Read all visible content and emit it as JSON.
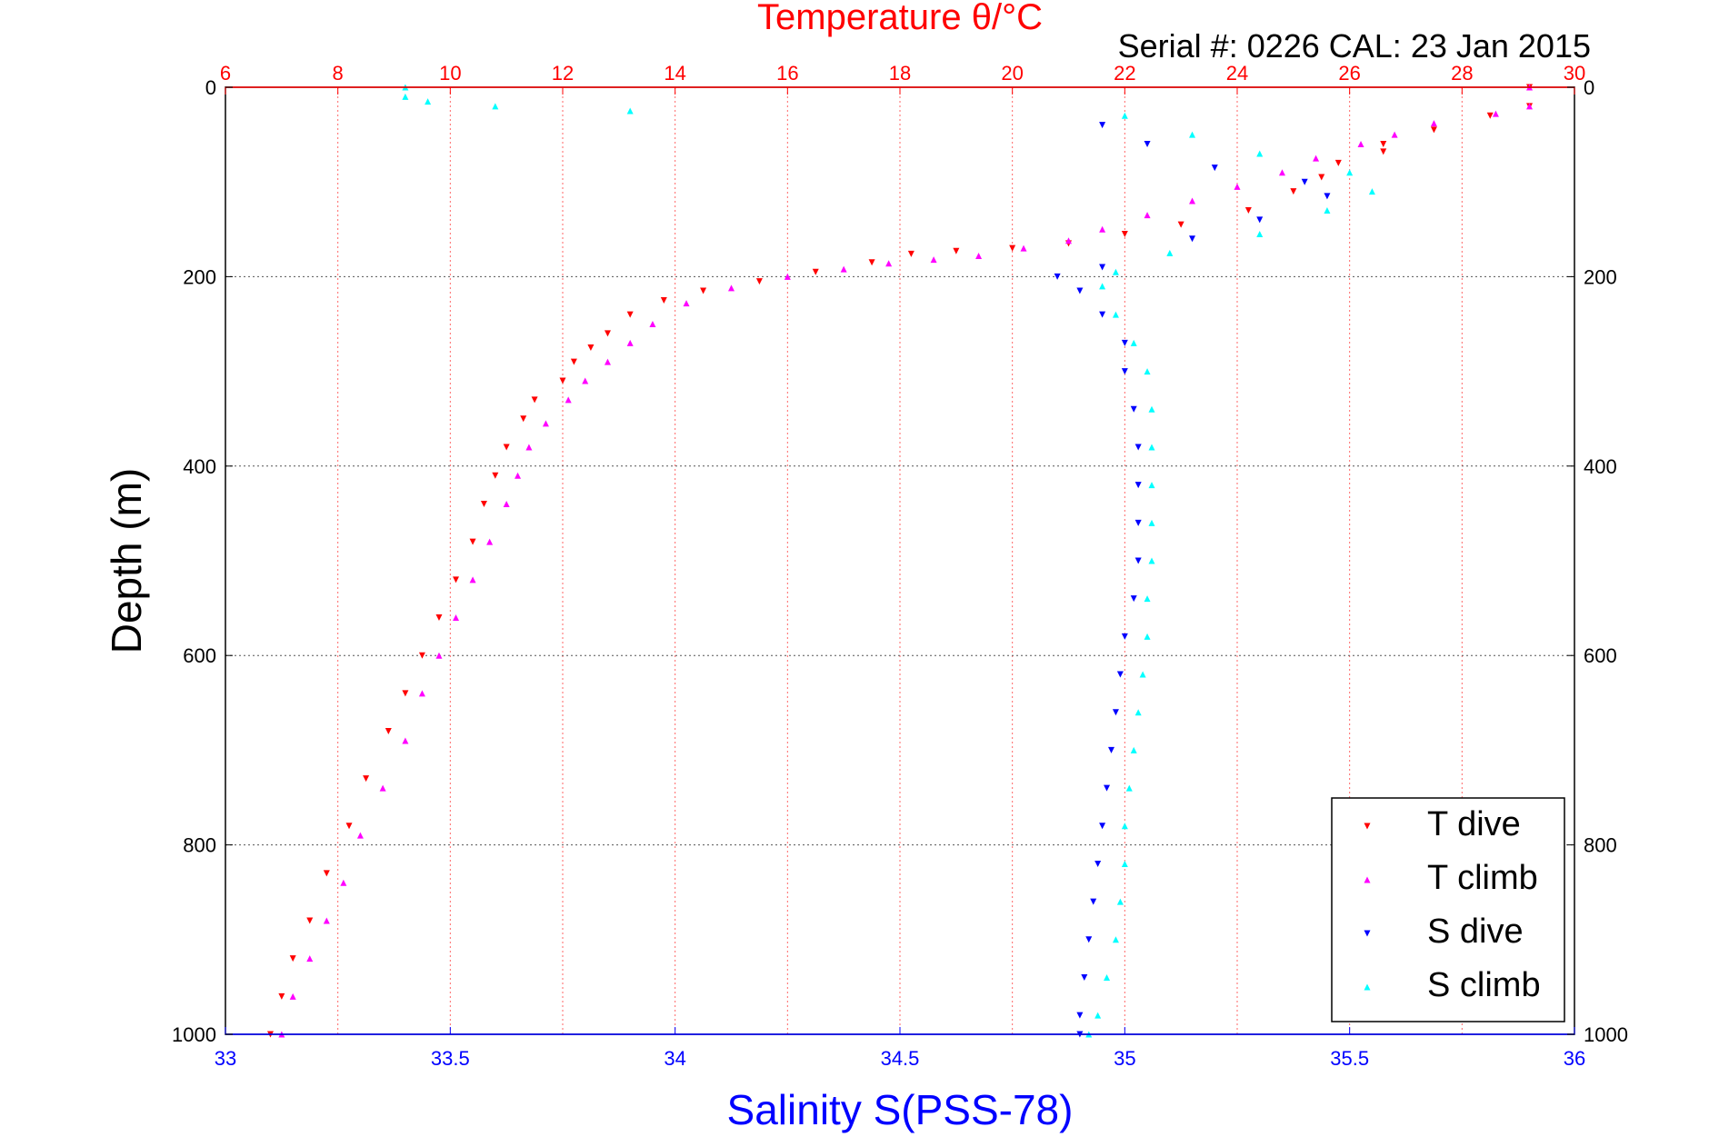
{
  "chart_data": {
    "type": "scatter",
    "title": "Temperature θ/°C",
    "subtitle": "Serial #: 0226  CAL: 23 Jan 2015",
    "xlabel": "Salinity S(PSS-78)",
    "ylabel": "Depth (m)",
    "x_bottom": {
      "range": [
        33,
        36
      ],
      "ticks": [
        33,
        33.5,
        34,
        34.5,
        35,
        35.5,
        36
      ],
      "color": "#0000ff"
    },
    "x_top": {
      "range": [
        6,
        30
      ],
      "ticks": [
        6,
        8,
        10,
        12,
        14,
        16,
        18,
        20,
        22,
        24,
        26,
        28,
        30
      ],
      "color": "#ff0000"
    },
    "y": {
      "range": [
        0,
        1000
      ],
      "ticks": [
        0,
        200,
        400,
        600,
        800,
        1000
      ],
      "reversed": true
    },
    "grid": true,
    "legend_position": "bottom-right",
    "series": [
      {
        "name": "T dive",
        "axis": "temperature",
        "color": "#ff0000",
        "marker": "triangle-down",
        "points": [
          [
            29.2,
            0
          ],
          [
            29.2,
            20
          ],
          [
            28.5,
            30
          ],
          [
            27.5,
            45
          ],
          [
            26.6,
            60
          ],
          [
            26.6,
            68
          ],
          [
            25.8,
            80
          ],
          [
            25.5,
            95
          ],
          [
            25.0,
            110
          ],
          [
            24.2,
            130
          ],
          [
            23.0,
            145
          ],
          [
            22.0,
            155
          ],
          [
            21.0,
            165
          ],
          [
            20.0,
            170
          ],
          [
            19.0,
            173
          ],
          [
            18.2,
            176
          ],
          [
            17.5,
            185
          ],
          [
            16.5,
            195
          ],
          [
            15.5,
            205
          ],
          [
            14.5,
            215
          ],
          [
            13.8,
            225
          ],
          [
            13.2,
            240
          ],
          [
            12.8,
            260
          ],
          [
            12.5,
            275
          ],
          [
            12.2,
            290
          ],
          [
            12.0,
            310
          ],
          [
            11.5,
            330
          ],
          [
            11.3,
            350
          ],
          [
            11.0,
            380
          ],
          [
            10.8,
            410
          ],
          [
            10.6,
            440
          ],
          [
            10.4,
            480
          ],
          [
            10.1,
            520
          ],
          [
            9.8,
            560
          ],
          [
            9.5,
            600
          ],
          [
            9.2,
            640
          ],
          [
            8.9,
            680
          ],
          [
            8.5,
            730
          ],
          [
            8.2,
            780
          ],
          [
            7.8,
            830
          ],
          [
            7.5,
            880
          ],
          [
            7.2,
            920
          ],
          [
            7.0,
            960
          ],
          [
            6.8,
            1000
          ]
        ]
      },
      {
        "name": "T climb",
        "axis": "temperature",
        "color": "#ff00ff",
        "marker": "triangle-up",
        "points": [
          [
            29.2,
            0
          ],
          [
            29.2,
            20
          ],
          [
            28.6,
            28
          ],
          [
            27.5,
            38
          ],
          [
            26.8,
            50
          ],
          [
            26.2,
            60
          ],
          [
            25.4,
            75
          ],
          [
            24.8,
            90
          ],
          [
            24.0,
            105
          ],
          [
            23.2,
            120
          ],
          [
            22.4,
            135
          ],
          [
            21.6,
            150
          ],
          [
            21.0,
            162
          ],
          [
            20.2,
            170
          ],
          [
            19.4,
            178
          ],
          [
            18.6,
            182
          ],
          [
            17.8,
            186
          ],
          [
            17.0,
            192
          ],
          [
            16.0,
            200
          ],
          [
            15.0,
            212
          ],
          [
            14.2,
            228
          ],
          [
            13.6,
            250
          ],
          [
            13.2,
            270
          ],
          [
            12.8,
            290
          ],
          [
            12.4,
            310
          ],
          [
            12.1,
            330
          ],
          [
            11.7,
            355
          ],
          [
            11.4,
            380
          ],
          [
            11.2,
            410
          ],
          [
            11.0,
            440
          ],
          [
            10.7,
            480
          ],
          [
            10.4,
            520
          ],
          [
            10.1,
            560
          ],
          [
            9.8,
            600
          ],
          [
            9.5,
            640
          ],
          [
            9.2,
            690
          ],
          [
            8.8,
            740
          ],
          [
            8.4,
            790
          ],
          [
            8.1,
            840
          ],
          [
            7.8,
            880
          ],
          [
            7.5,
            920
          ],
          [
            7.2,
            960
          ],
          [
            7.0,
            1000
          ]
        ]
      },
      {
        "name": "S dive",
        "axis": "salinity",
        "color": "#0000ff",
        "marker": "triangle-down",
        "points": [
          [
            34.95,
            40
          ],
          [
            35.05,
            60
          ],
          [
            35.2,
            85
          ],
          [
            35.4,
            100
          ],
          [
            35.45,
            115
          ],
          [
            35.3,
            140
          ],
          [
            35.15,
            160
          ],
          [
            34.95,
            190
          ],
          [
            34.85,
            200
          ],
          [
            34.9,
            215
          ],
          [
            34.95,
            240
          ],
          [
            35.0,
            270
          ],
          [
            35.0,
            300
          ],
          [
            35.02,
            340
          ],
          [
            35.03,
            380
          ],
          [
            35.03,
            420
          ],
          [
            35.03,
            460
          ],
          [
            35.03,
            500
          ],
          [
            35.02,
            540
          ],
          [
            35.0,
            580
          ],
          [
            34.99,
            620
          ],
          [
            34.98,
            660
          ],
          [
            34.97,
            700
          ],
          [
            34.96,
            740
          ],
          [
            34.95,
            780
          ],
          [
            34.94,
            820
          ],
          [
            34.93,
            860
          ],
          [
            34.92,
            900
          ],
          [
            34.91,
            940
          ],
          [
            34.9,
            980
          ],
          [
            34.9,
            1000
          ]
        ]
      },
      {
        "name": "S climb",
        "axis": "salinity",
        "color": "#00ffff",
        "marker": "triangle-up",
        "points": [
          [
            33.4,
            0
          ],
          [
            33.4,
            10
          ],
          [
            33.45,
            15
          ],
          [
            33.6,
            20
          ],
          [
            33.9,
            25
          ],
          [
            35.0,
            30
          ],
          [
            35.15,
            50
          ],
          [
            35.3,
            70
          ],
          [
            35.5,
            90
          ],
          [
            35.55,
            110
          ],
          [
            35.45,
            130
          ],
          [
            35.3,
            155
          ],
          [
            35.1,
            175
          ],
          [
            34.98,
            195
          ],
          [
            34.95,
            210
          ],
          [
            34.98,
            240
          ],
          [
            35.02,
            270
          ],
          [
            35.05,
            300
          ],
          [
            35.06,
            340
          ],
          [
            35.06,
            380
          ],
          [
            35.06,
            420
          ],
          [
            35.06,
            460
          ],
          [
            35.06,
            500
          ],
          [
            35.05,
            540
          ],
          [
            35.05,
            580
          ],
          [
            35.04,
            620
          ],
          [
            35.03,
            660
          ],
          [
            35.02,
            700
          ],
          [
            35.01,
            740
          ],
          [
            35.0,
            780
          ],
          [
            35.0,
            820
          ],
          [
            34.99,
            860
          ],
          [
            34.98,
            900
          ],
          [
            34.96,
            940
          ],
          [
            34.94,
            980
          ],
          [
            34.92,
            1000
          ]
        ]
      }
    ]
  }
}
